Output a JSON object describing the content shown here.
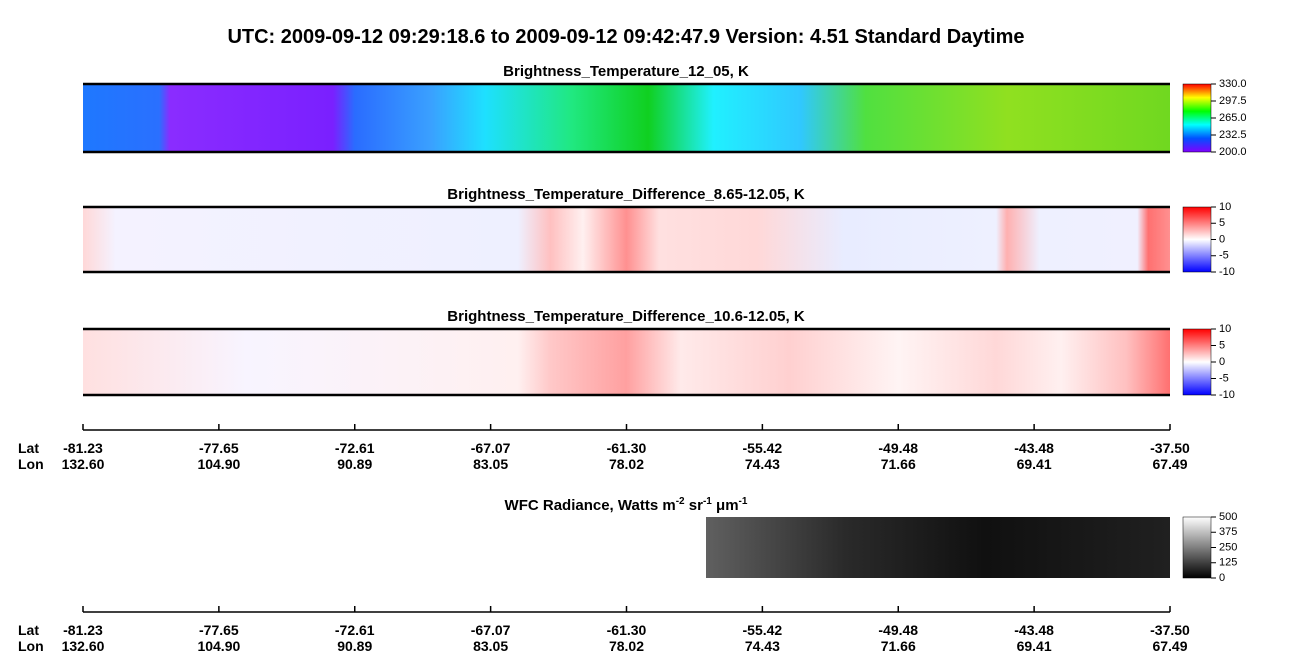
{
  "title": "UTC:  2009-09-12   09:29:18.6  to  2009-09-12   09:42:47.9    Version: 4.51  Standard Daytime",
  "panels": [
    {
      "title": "Brightness_Temperature_12_05, K",
      "range": [
        200,
        330
      ],
      "ticks": [
        {
          "value": 330,
          "label": "330.0"
        },
        {
          "value": 297.5,
          "label": "297.5"
        },
        {
          "value": 265,
          "label": "265.0"
        },
        {
          "value": 232.5,
          "label": "232.5"
        },
        {
          "value": 200,
          "label": "200.0"
        }
      ]
    },
    {
      "title": "Brightness_Temperature_Difference_8.65-12.05, K",
      "range": [
        -10,
        10
      ],
      "ticks": [
        10,
        5,
        0,
        -5,
        -10
      ]
    },
    {
      "title": "Brightness_Temperature_Difference_10.6-12.05, K",
      "range": [
        -10,
        10
      ],
      "ticks": [
        10,
        5,
        0,
        -5,
        -10
      ]
    }
  ],
  "wfc": {
    "title_parts": [
      "WFC Radiance, Watts m",
      "-2",
      " sr",
      "-1",
      " μm",
      "-1"
    ],
    "range": [
      0,
      500
    ],
    "ticks": [
      500,
      375,
      250,
      125,
      0
    ]
  },
  "axis": {
    "lat_label": "Lat",
    "lon_label": "Lon",
    "lat": [
      "-81.23",
      "-77.65",
      "-72.61",
      "-67.07",
      "-61.30",
      "-55.42",
      "-49.48",
      "-43.48",
      "-37.50"
    ],
    "lon": [
      "132.60",
      "104.90",
      "90.89",
      "83.05",
      "78.02",
      "74.43",
      "71.66",
      "69.41",
      "67.49"
    ]
  }
}
